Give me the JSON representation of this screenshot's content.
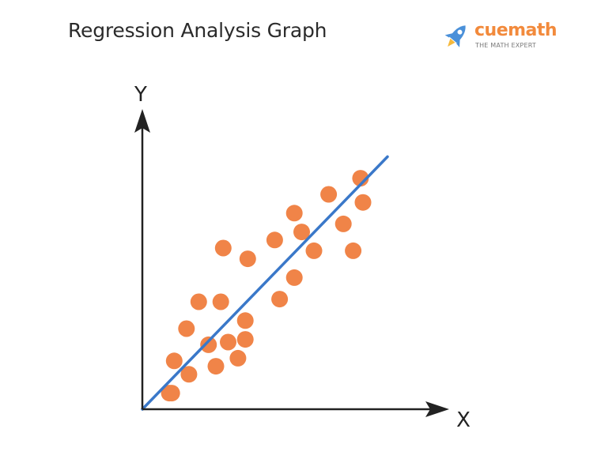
{
  "header": {
    "title": "Regression Analysis Graph"
  },
  "brand": {
    "name": "cuemath",
    "tagline": "THE MATH EXPERT",
    "logo_icon": "rocket-icon",
    "color": "#f28a3c",
    "icon_color": "#4a90d9"
  },
  "chart_data": {
    "type": "scatter",
    "title": "Regression Analysis Graph",
    "xlabel": "X",
    "ylabel": "Y",
    "xlim": [
      0,
      100
    ],
    "ylim": [
      0,
      100
    ],
    "grid": false,
    "legend": "none",
    "point_color": "#f08448",
    "line_color": "#3a78c9",
    "axis_color": "#222222",
    "points": [
      {
        "x": 12,
        "y": 6
      },
      {
        "x": 13,
        "y": 18
      },
      {
        "x": 19,
        "y": 13
      },
      {
        "x": 18,
        "y": 30
      },
      {
        "x": 23,
        "y": 40
      },
      {
        "x": 27,
        "y": 24
      },
      {
        "x": 30,
        "y": 16
      },
      {
        "x": 32,
        "y": 40
      },
      {
        "x": 33,
        "y": 60
      },
      {
        "x": 35,
        "y": 25
      },
      {
        "x": 39,
        "y": 19
      },
      {
        "x": 42,
        "y": 33
      },
      {
        "x": 42,
        "y": 26
      },
      {
        "x": 43,
        "y": 56
      },
      {
        "x": 54,
        "y": 63
      },
      {
        "x": 56,
        "y": 41
      },
      {
        "x": 62,
        "y": 49
      },
      {
        "x": 62,
        "y": 73
      },
      {
        "x": 65,
        "y": 66
      },
      {
        "x": 70,
        "y": 59
      },
      {
        "x": 76,
        "y": 80
      },
      {
        "x": 82,
        "y": 69
      },
      {
        "x": 86,
        "y": 59
      },
      {
        "x": 89,
        "y": 86
      },
      {
        "x": 90,
        "y": 77
      },
      {
        "x": 11,
        "y": 6
      }
    ],
    "regression_line": {
      "x": [
        0,
        100
      ],
      "y": [
        0,
        94
      ]
    }
  }
}
